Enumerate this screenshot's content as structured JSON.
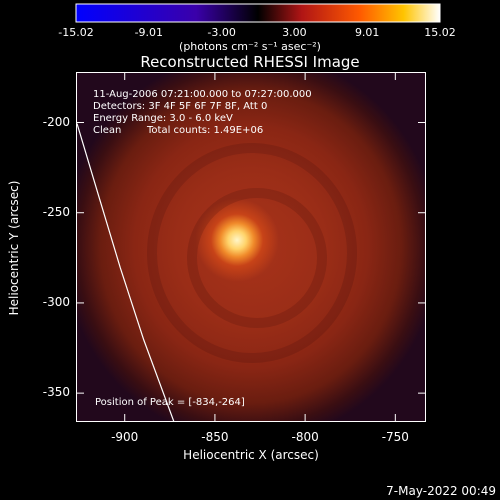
{
  "colorbar": {
    "ticks": [
      "-15.02",
      "-9.01",
      "-3.00",
      "3.00",
      "9.01",
      "15.02"
    ],
    "units": "(photons cm⁻² s⁻¹ asec⁻²)"
  },
  "chart_data": {
    "type": "heatmap",
    "title": "Reconstructed RHESSI Image",
    "xlabel": "Heliocentric X (arcsec)",
    "ylabel": "Heliocentric Y (arcsec)",
    "xlim": [
      -927,
      -733
    ],
    "ylim": [
      -366,
      -172
    ],
    "x_ticks": [
      "-900",
      "-850",
      "-800",
      "-750"
    ],
    "y_ticks": [
      "-200",
      "-250",
      "-300",
      "-350"
    ],
    "peak": [
      -834,
      -264
    ],
    "color_range": [
      -15.02,
      15.02
    ],
    "limb_line": [
      [
        -927,
        -200
      ],
      [
        -915,
        -240
      ],
      [
        -903,
        -280
      ],
      [
        -890,
        -320
      ],
      [
        -873,
        -366
      ]
    ],
    "annotations": {
      "time": "11-Aug-2006 07:21:00.000 to 07:27:00.000",
      "detectors": "Detectors: 3F 4F 5F 6F 7F 8F, Att 0",
      "energy": "Energy Range: 3.0 - 6.0 keV",
      "method": "Clean",
      "counts": "Total counts: 1.49E+06",
      "peak_label": "Position of Peak = [-834,-264]"
    }
  },
  "footer": "7-May-2022 00:49"
}
